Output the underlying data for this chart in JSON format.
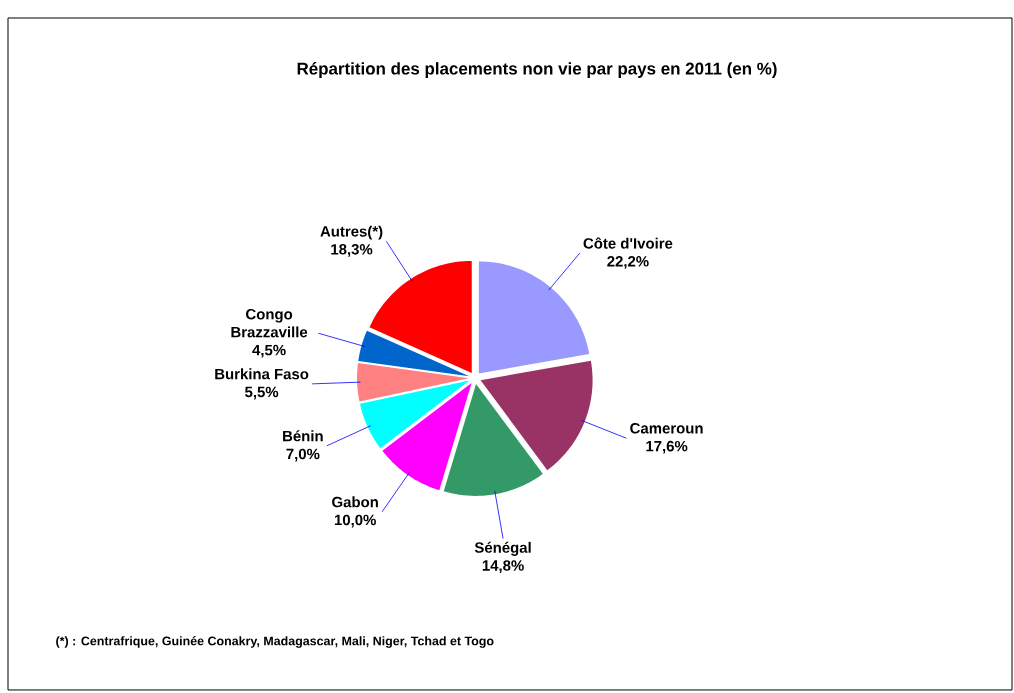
{
  "chart_data": {
    "type": "pie",
    "title": "Répartition des placements non vie par pays en 2011 (en %)",
    "categories": [
      "Côte d'Ivoire",
      "Cameroun",
      "Sénégal",
      "Gabon",
      "Bénin",
      "Burkina Faso",
      "Congo Brazzaville",
      "Autres(*)"
    ],
    "values": [
      22.2,
      17.6,
      14.8,
      10.0,
      7.0,
      5.5,
      4.5,
      18.3
    ],
    "value_labels": [
      "22,2%",
      "17,6%",
      "14,8%",
      "10,0%",
      "7,0%",
      "5,5%",
      "4,5%",
      "18,3%"
    ],
    "colors": [
      "#9999ff",
      "#993366",
      "#339966",
      "#ff00ff",
      "#00ffff",
      "#ff8080",
      "#0066cc",
      "#ff0000"
    ],
    "annotations": [
      "(*) : Centrafrique, Guinée Conakry, Madagascar, Mali, Niger, Tchad et Togo"
    ]
  }
}
